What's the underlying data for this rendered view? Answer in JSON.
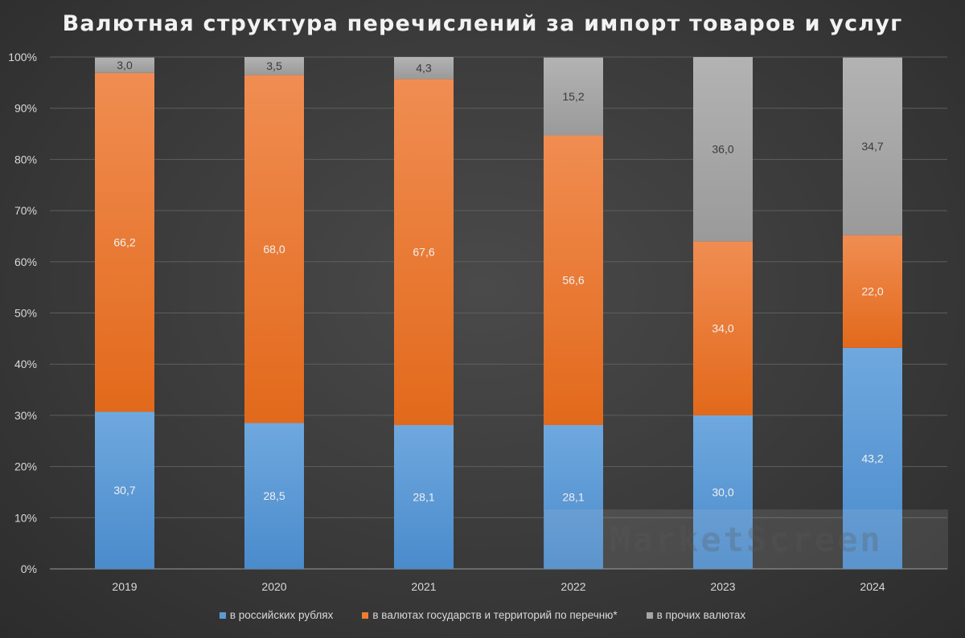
{
  "chart_data": {
    "type": "bar",
    "stacked": true,
    "percent_stacked": true,
    "title": "Валютная структура перечислений за импорт товаров и услуг",
    "categories": [
      "2019",
      "2020",
      "2021",
      "2022",
      "2023",
      "2024"
    ],
    "y_tick_labels": [
      "0%",
      "10%",
      "20%",
      "30%",
      "40%",
      "50%",
      "60%",
      "70%",
      "80%",
      "90%",
      "100%"
    ],
    "ylim": [
      0,
      100
    ],
    "grid": true,
    "legend_position": "bottom",
    "series": [
      {
        "name": "в российских рублях",
        "color": "#5b9bd5",
        "values": [
          30.7,
          28.5,
          28.1,
          28.1,
          30.0,
          43.2
        ],
        "labels": [
          "30,7",
          "28,5",
          "28,1",
          "28,1",
          "30,0",
          "43,2"
        ]
      },
      {
        "name": "в валютах государств и территорий по перечню*",
        "color": "#ed7d31",
        "values": [
          66.2,
          68.0,
          67.6,
          56.6,
          34.0,
          22.0
        ],
        "labels": [
          "66,2",
          "68,0",
          "67,6",
          "56,6",
          "34,0",
          "22,0"
        ]
      },
      {
        "name": "в прочих валютах",
        "color": "#a5a5a5",
        "values": [
          3.0,
          3.5,
          4.3,
          15.2,
          36.0,
          34.7
        ],
        "labels": [
          "3,0",
          "3,5",
          "4,3",
          "15,2",
          "36,0",
          "34,7"
        ]
      }
    ]
  },
  "watermark": "MarketScreen"
}
